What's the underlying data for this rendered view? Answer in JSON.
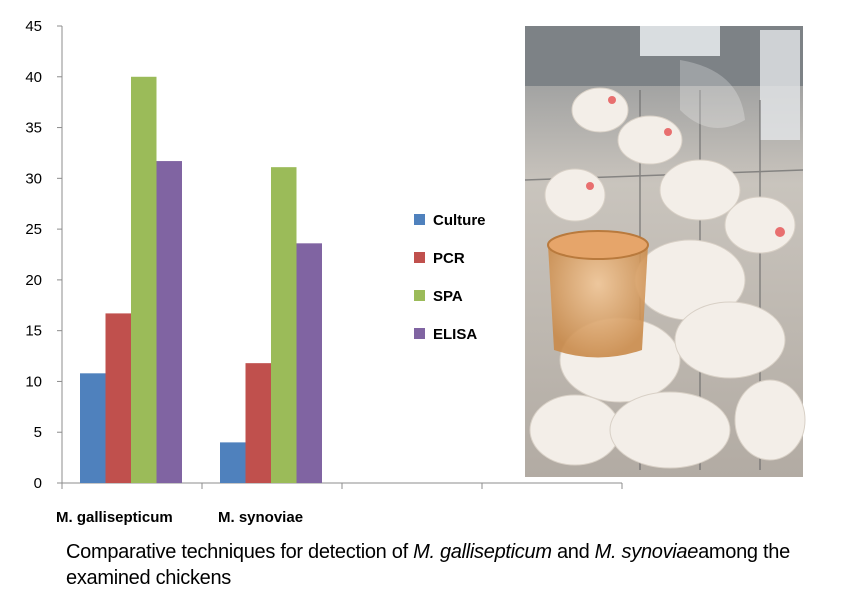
{
  "chart_data": {
    "type": "bar",
    "categories": [
      "M. gallisepticum",
      "M. synoviae"
    ],
    "series": [
      {
        "name": "Culture",
        "values": [
          10.8,
          4.0
        ],
        "color": "#4f81bd"
      },
      {
        "name": "PCR",
        "values": [
          16.7,
          11.8
        ],
        "color": "#c0504d"
      },
      {
        "name": "SPA",
        "values": [
          40.0,
          31.1
        ],
        "color": "#9bbb59"
      },
      {
        "name": "ELISA",
        "values": [
          31.7,
          23.6
        ],
        "color": "#8064a2"
      }
    ],
    "ylim": [
      0,
      45
    ],
    "yticks": [
      "0",
      "5",
      "10",
      "15",
      "20",
      "25",
      "30",
      "35",
      "40",
      "45"
    ],
    "legend_position": "right",
    "grid": false
  },
  "caption": {
    "part1": "Comparative techniques for detection of ",
    "italic1": "M. gallisepticum",
    "part2": " and ",
    "italic2": "M. synoviae",
    "part3": "among the examined chickens"
  },
  "photo": {
    "subject": "white chickens in a cage with an orange feeder"
  }
}
